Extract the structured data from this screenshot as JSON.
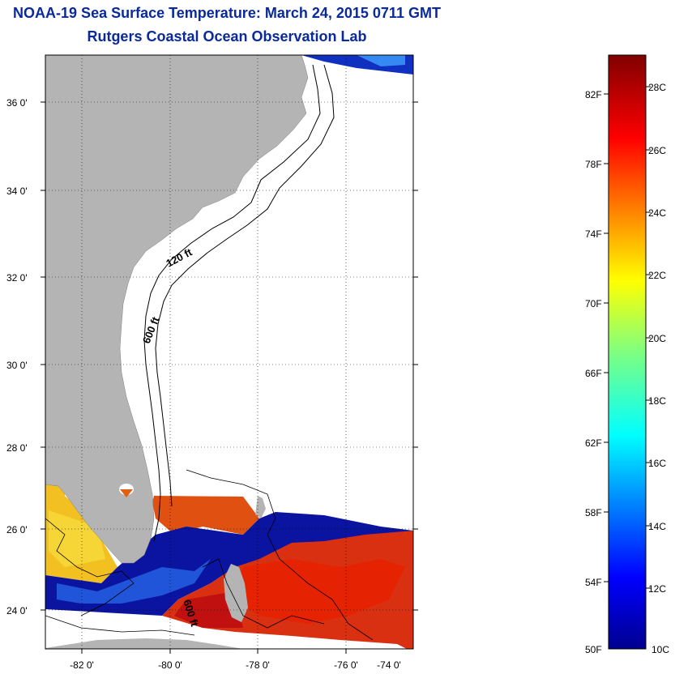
{
  "title": "NOAA-19 Sea Surface Temperature:  March 24, 2015 0711 GMT",
  "subtitle": "Rutgers Coastal Ocean Observation Lab",
  "map": {
    "lat_labels": [
      "36 0'",
      "34 0'",
      "32 0'",
      "30 0'",
      "28 0'",
      "26 0'",
      "24 0'"
    ],
    "lon_labels": [
      "-82 0'",
      "-80 0'",
      "-78 0'",
      "-76 0'",
      "-74 0'"
    ],
    "contour_labels": [
      "120 ft",
      "600 ft",
      "600 ft"
    ],
    "colors": {
      "land": "#b4b4b4",
      "ocean_nodata": "#ffffff",
      "cold": "#00008f",
      "warm": "#d40000"
    }
  },
  "colorbar": {
    "fahrenheit": [
      "82F",
      "78F",
      "74F",
      "70F",
      "66F",
      "62F",
      "58F",
      "54F",
      "50F"
    ],
    "celsius": [
      "28C",
      "26C",
      "24C",
      "22C",
      "20C",
      "18C",
      "16C",
      "14C",
      "12C",
      "10C"
    ],
    "range_c": [
      10,
      29
    ],
    "colormap": "jet"
  }
}
